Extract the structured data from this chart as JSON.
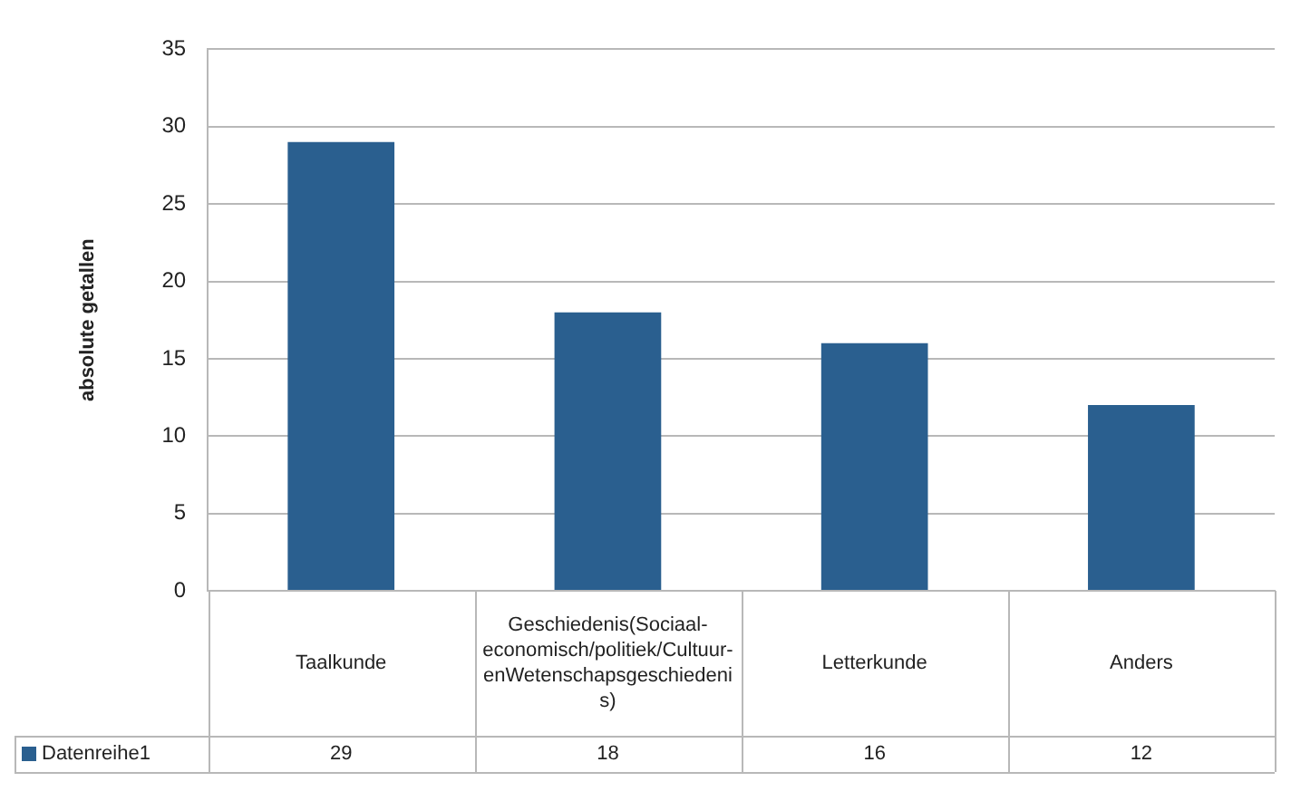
{
  "chart_data": {
    "type": "bar",
    "ylabel": "absolute getallen",
    "categories": [
      "Taalkunde",
      "Geschiedenis(Sociaal-economisch/politiek/Cultuur-enWetenschapsgeschiedenis)",
      "Letterkunde",
      "Anders"
    ],
    "series": [
      {
        "name": "Datenreihe1",
        "color": "#2a5f8f",
        "values": [
          29,
          18,
          16,
          12
        ]
      }
    ],
    "ylim": [
      0,
      35
    ],
    "yticks": [
      0,
      5,
      10,
      15,
      20,
      25,
      30,
      35
    ],
    "grid": "y",
    "data_labels": true,
    "legend": "bottom left"
  }
}
